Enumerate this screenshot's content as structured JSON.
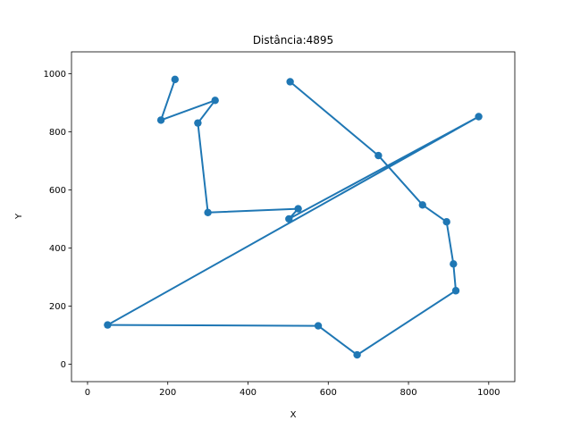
{
  "chart_data": {
    "type": "line",
    "title": "Distância:4895",
    "xlabel": "X",
    "ylabel": "Y",
    "xlim": [
      -40,
      1065
    ],
    "ylim": [
      -60,
      1075
    ],
    "xticks": [
      0,
      200,
      400,
      600,
      800,
      1000
    ],
    "yticks": [
      0,
      200,
      400,
      600,
      800,
      1000
    ],
    "grid": false,
    "color": "#1f77b4",
    "series": [
      {
        "marker": "circle",
        "x": [
          505,
          725,
          835,
          895,
          912,
          918,
          672,
          575,
          50,
          975,
          502,
          525,
          300,
          275,
          318,
          183,
          218
        ],
        "y": [
          972,
          718,
          548,
          490,
          345,
          253,
          32,
          132,
          135,
          852,
          500,
          535,
          522,
          830,
          908,
          840,
          980
        ]
      }
    ]
  }
}
